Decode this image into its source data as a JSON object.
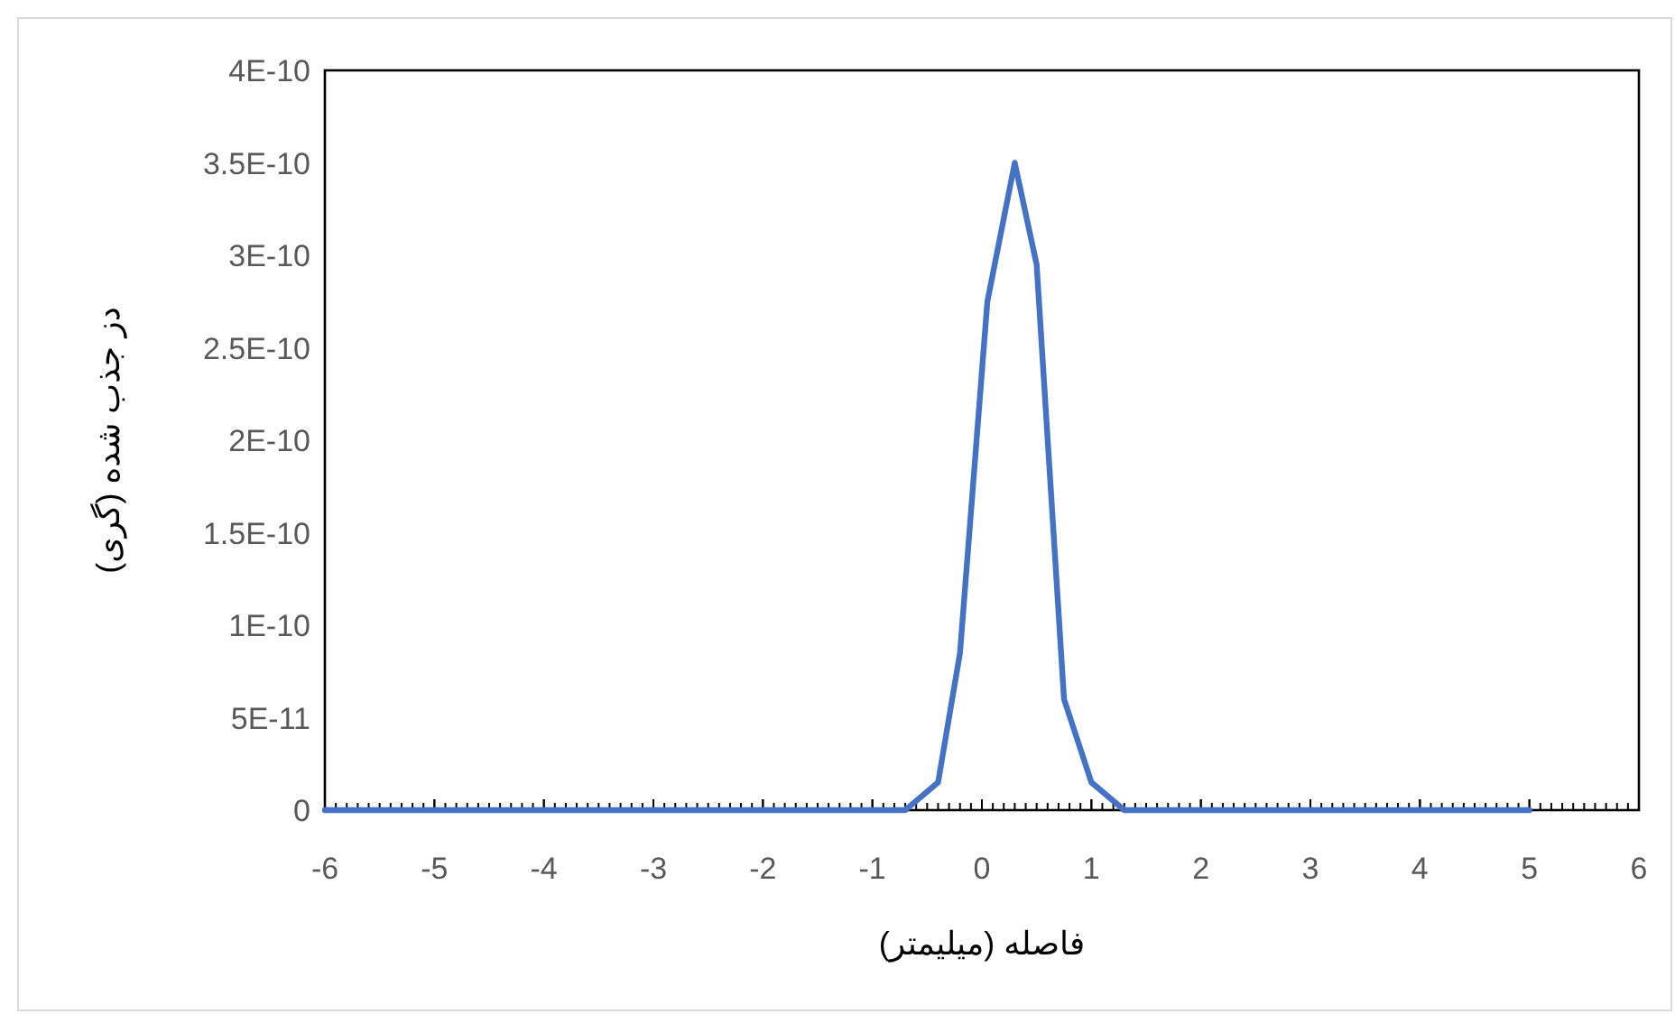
{
  "chart_data": {
    "type": "line",
    "xlabel": "فاصله (میلیمتر)",
    "ylabel": "دز جذب شده (گری)",
    "x": [
      -6,
      -0.7,
      -0.4,
      -0.2,
      0.05,
      0.3,
      0.5,
      0.75,
      1,
      1.3,
      5
    ],
    "series": [
      {
        "color": "#4472c4",
        "values": [
          0,
          0,
          1.5e-11,
          8.5e-11,
          2.75e-10,
          3.5e-10,
          2.95e-10,
          6e-11,
          1.5e-11,
          0,
          0
        ]
      }
    ],
    "xlim": [
      -6,
      6
    ],
    "xticks": [
      -6,
      -5,
      -4,
      -3,
      -2,
      -1,
      0,
      1,
      2,
      3,
      4,
      5,
      6
    ],
    "ylim": [
      0,
      4e-10
    ],
    "yticks": [
      0,
      {
        "value": 5e-11,
        "label": "5E-11"
      },
      {
        "value": 1e-10,
        "label": "1E-10"
      },
      {
        "value": 1.5e-10,
        "label": "1.5E-10"
      },
      {
        "value": 2e-10,
        "label": "2E-10"
      },
      {
        "value": 2.5e-10,
        "label": "2.5E-10"
      },
      {
        "value": 3e-10,
        "label": "3E-10"
      },
      {
        "value": 3.5e-10,
        "label": "3.5E-10"
      },
      {
        "value": 4e-10,
        "label": "4E-10"
      }
    ],
    "grid": false,
    "marker": "none",
    "line_style": "solid"
  }
}
